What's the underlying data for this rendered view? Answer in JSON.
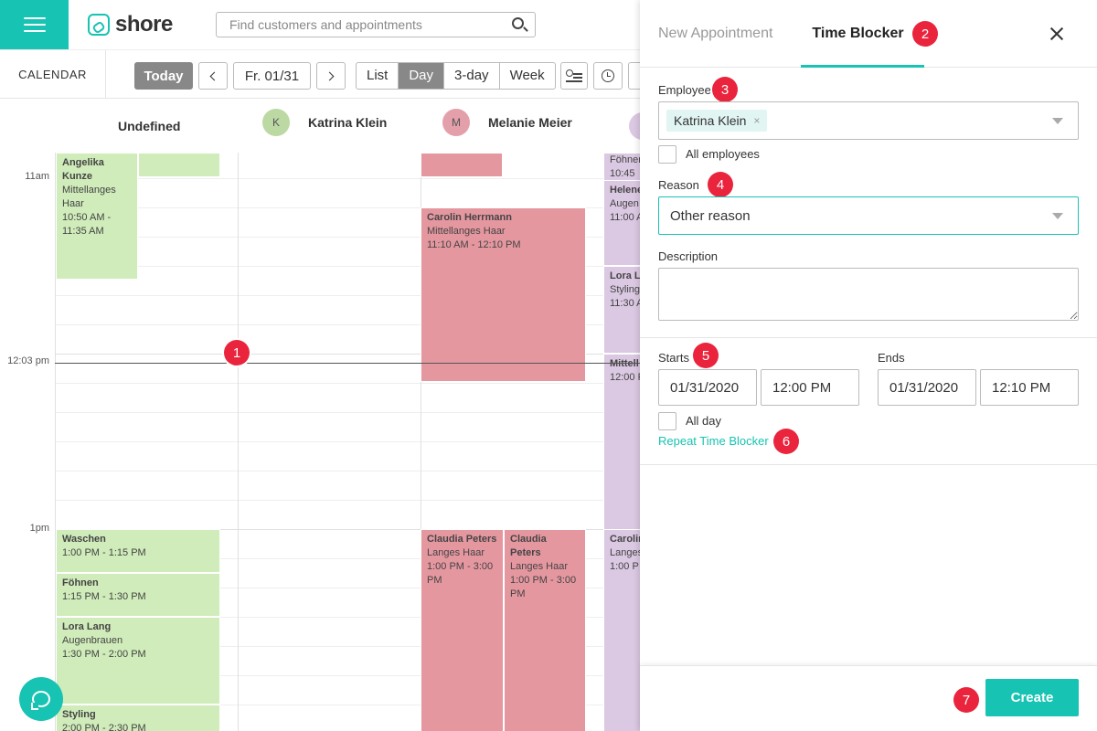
{
  "header": {
    "logo_text": "shore",
    "search_placeholder": "Find customers and appointments"
  },
  "toolbar": {
    "calendar_label": "CALENDAR",
    "today_label": "Today",
    "date_label": "Fr. 01/31",
    "views": [
      "List",
      "Day",
      "3-day",
      "Week"
    ],
    "active_view": "Day"
  },
  "calendar": {
    "columns": [
      {
        "name": "Undefined",
        "initial": "",
        "color": ""
      },
      {
        "name": "Katrina Klein",
        "initial": "K",
        "color": "#bcd9a4"
      },
      {
        "name": "Melanie Meier",
        "initial": "M",
        "color": "#e4a0aa"
      }
    ],
    "time_labels": [
      "11am",
      "12:03 pm",
      "1pm"
    ],
    "appointments": [
      {
        "name": "Angelika Kunze",
        "service": "Mittellanges Haar",
        "time": "10:50 AM - 11:35 AM",
        "color": "green"
      },
      {
        "name": "Carolin Herrmann",
        "service": "Mittellanges Haar",
        "time": "11:10 AM - 12:10 PM",
        "color": "red"
      },
      {
        "name": "Föhnen",
        "service": "",
        "time": "10:45",
        "color": "purple"
      },
      {
        "name": "Helene",
        "service": "Augen",
        "time": "11:00 A",
        "color": "purple"
      },
      {
        "name": "Lora La",
        "service": "Styling",
        "time": "11:30 A",
        "color": "purple"
      },
      {
        "name": "Mittell",
        "service": "",
        "time": "12:00 P",
        "color": "purple"
      },
      {
        "name": "Waschen",
        "service": "",
        "time": "1:00 PM - 1:15 PM",
        "color": "green"
      },
      {
        "name": "Föhnen",
        "service": "",
        "time": "1:15 PM - 1:30 PM",
        "color": "green"
      },
      {
        "name": "Lora Lang",
        "service": "Augenbrauen",
        "time": "1:30 PM - 2:00 PM",
        "color": "green"
      },
      {
        "name": "Styling",
        "service": "",
        "time": "2:00 PM - 2:30 PM",
        "color": "green"
      },
      {
        "name": "Claudia Peters",
        "service": "Langes Haar",
        "time": "1:00 PM - 3:00 PM",
        "color": "red"
      },
      {
        "name": "Claudia Peters",
        "service": "Langes Haar",
        "time": "1:00 PM - 3:00 PM",
        "color": "red"
      },
      {
        "name": "Carolin",
        "service": "Langes",
        "time": "1:00 P",
        "color": "purple"
      }
    ]
  },
  "badges": [
    "1",
    "2",
    "3",
    "4",
    "5",
    "6",
    "7"
  ],
  "panel": {
    "tab_new": "New Appointment",
    "tab_blocker": "Time Blocker",
    "employee_label": "Employee",
    "employee_tag": "Katrina Klein",
    "employee_tag_remove": "×",
    "all_employees_label": "All employees",
    "reason_label": "Reason",
    "reason_value": "Other reason",
    "description_label": "Description",
    "starts_label": "Starts",
    "start_date": "01/31/2020",
    "start_time": "12:00 PM",
    "ends_label": "Ends",
    "end_date": "01/31/2020",
    "end_time": "12:10 PM",
    "all_day_label": "All day",
    "repeat_label": "Repeat Time Blocker",
    "create_label": "Create"
  },
  "colors": {
    "accent": "#17c3b2",
    "badge": "#e9243c",
    "green": "#d0ecba",
    "red": "#e597a0",
    "purple": "#dbc8e2"
  }
}
